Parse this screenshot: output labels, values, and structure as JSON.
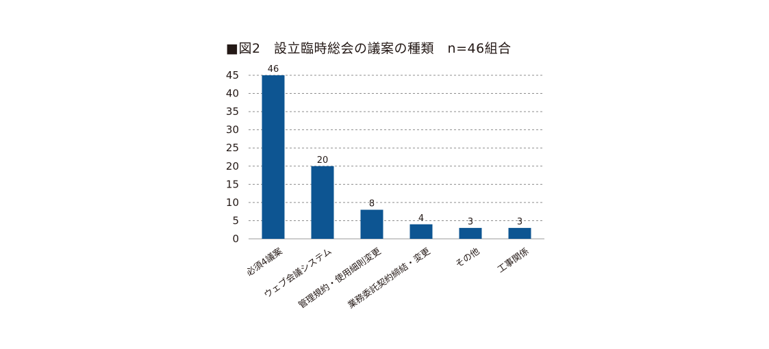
{
  "chart_data": {
    "type": "bar",
    "title": "■図2　設立臨時総会の議案の種類　n=46組合",
    "categories": [
      "必須4議案",
      "ウェブ会議システム",
      "管理規約・使用細則変更",
      "業務委託契約締結・変更",
      "その他",
      "工事関係"
    ],
    "values": [
      46,
      20,
      8,
      4,
      3,
      3
    ],
    "data_labels": [
      "46",
      "20",
      "8",
      "4",
      "3",
      "3"
    ],
    "ylim": [
      0,
      45
    ],
    "yticks": [
      0,
      5,
      10,
      15,
      20,
      25,
      30,
      35,
      40,
      45
    ],
    "xlabel": "",
    "ylabel": "",
    "grid": "horizontal-dashed",
    "bar_color": "#0d5592"
  }
}
